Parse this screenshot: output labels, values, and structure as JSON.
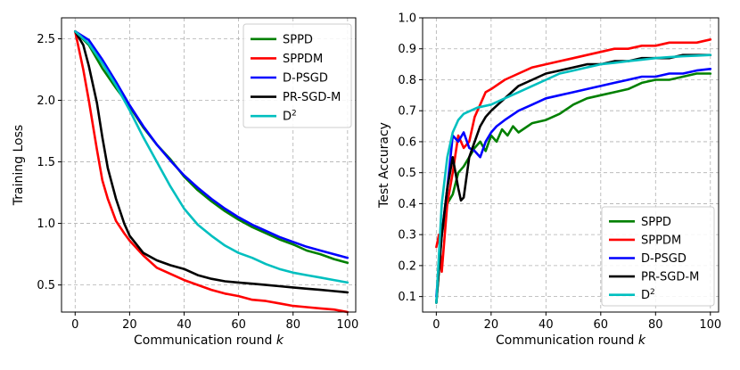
{
  "chart_data": [
    {
      "type": "line",
      "title": "",
      "xlabel": "Communication round",
      "xlabel_var": "k",
      "ylabel": "Training Loss",
      "xlim": [
        -5,
        103
      ],
      "ylim": [
        0.28,
        2.67
      ],
      "xticks": [
        0,
        20,
        40,
        60,
        80,
        100
      ],
      "xtick_labels": [
        "0",
        "20",
        "40",
        "60",
        "80",
        "100"
      ],
      "yticks": [
        0.5,
        1.0,
        1.5,
        2.0,
        2.5
      ],
      "ytick_labels": [
        "0.5",
        "1.0",
        "1.5",
        "2.0",
        "2.5"
      ],
      "grid": true,
      "legend": "top-right",
      "series": [
        {
          "name": "SPPD",
          "color": "#008000",
          "x": [
            0,
            5,
            10,
            15,
            20,
            25,
            30,
            35,
            40,
            45,
            50,
            55,
            60,
            65,
            70,
            75,
            80,
            85,
            90,
            95,
            100
          ],
          "y": [
            2.56,
            2.45,
            2.26,
            2.1,
            1.95,
            1.78,
            1.64,
            1.52,
            1.38,
            1.27,
            1.18,
            1.1,
            1.03,
            0.97,
            0.92,
            0.87,
            0.83,
            0.78,
            0.75,
            0.71,
            0.68
          ]
        },
        {
          "name": "SPPDM",
          "color": "#ff0000",
          "x": [
            0,
            3,
            5,
            8,
            10,
            12,
            15,
            18,
            20,
            25,
            30,
            35,
            40,
            45,
            50,
            55,
            60,
            65,
            70,
            75,
            80,
            85,
            90,
            95,
            100
          ],
          "y": [
            2.56,
            2.25,
            2.0,
            1.6,
            1.35,
            1.2,
            1.02,
            0.92,
            0.86,
            0.74,
            0.64,
            0.59,
            0.54,
            0.5,
            0.46,
            0.43,
            0.41,
            0.38,
            0.37,
            0.35,
            0.33,
            0.32,
            0.31,
            0.3,
            0.28
          ]
        },
        {
          "name": "D-PSGD",
          "color": "#0000ff",
          "x": [
            0,
            5,
            10,
            15,
            20,
            25,
            30,
            35,
            40,
            45,
            50,
            55,
            60,
            65,
            70,
            75,
            80,
            85,
            90,
            95,
            100
          ],
          "y": [
            2.56,
            2.49,
            2.33,
            2.15,
            1.96,
            1.79,
            1.64,
            1.51,
            1.39,
            1.29,
            1.2,
            1.12,
            1.05,
            0.99,
            0.94,
            0.89,
            0.85,
            0.81,
            0.78,
            0.75,
            0.72
          ]
        },
        {
          "name": "PR-SGD-M",
          "color": "#000000",
          "x": [
            0,
            3,
            5,
            8,
            10,
            12,
            15,
            18,
            20,
            25,
            30,
            35,
            40,
            45,
            50,
            55,
            60,
            65,
            70,
            75,
            80,
            85,
            90,
            95,
            100
          ],
          "y": [
            2.56,
            2.45,
            2.28,
            1.98,
            1.7,
            1.45,
            1.2,
            1.0,
            0.9,
            0.76,
            0.7,
            0.66,
            0.63,
            0.58,
            0.55,
            0.53,
            0.52,
            0.51,
            0.5,
            0.49,
            0.48,
            0.47,
            0.46,
            0.45,
            0.44
          ]
        },
        {
          "name": "D2",
          "color": "#00bfbf",
          "x": [
            0,
            5,
            10,
            15,
            20,
            25,
            30,
            35,
            40,
            45,
            50,
            55,
            60,
            65,
            70,
            75,
            80,
            85,
            90,
            95,
            100
          ],
          "y": [
            2.56,
            2.46,
            2.3,
            2.12,
            1.92,
            1.7,
            1.5,
            1.3,
            1.12,
            0.99,
            0.9,
            0.82,
            0.76,
            0.72,
            0.67,
            0.63,
            0.6,
            0.58,
            0.56,
            0.54,
            0.52
          ]
        }
      ]
    },
    {
      "type": "line",
      "title": "",
      "xlabel": "Communication round",
      "xlabel_var": "k",
      "ylabel": "Test Accuracy",
      "xlim": [
        -5,
        103
      ],
      "ylim": [
        0.05,
        1.0
      ],
      "xticks": [
        0,
        20,
        40,
        60,
        80,
        100
      ],
      "xtick_labels": [
        "0",
        "20",
        "40",
        "60",
        "80",
        "100"
      ],
      "yticks": [
        0.1,
        0.2,
        0.3,
        0.4,
        0.5,
        0.6,
        0.7,
        0.8,
        0.9,
        1.0
      ],
      "ytick_labels": [
        "0.1",
        "0.2",
        "0.3",
        "0.4",
        "0.5",
        "0.6",
        "0.7",
        "0.8",
        "0.9",
        "1.0"
      ],
      "grid": true,
      "legend": "bottom-right",
      "series": [
        {
          "name": "SPPD",
          "color": "#008000",
          "x": [
            0,
            2,
            4,
            6,
            8,
            10,
            12,
            14,
            16,
            18,
            20,
            22,
            24,
            26,
            28,
            30,
            35,
            40,
            45,
            50,
            55,
            60,
            65,
            70,
            75,
            80,
            85,
            90,
            95,
            100
          ],
          "y": [
            0.08,
            0.3,
            0.4,
            0.43,
            0.5,
            0.52,
            0.55,
            0.58,
            0.6,
            0.57,
            0.62,
            0.6,
            0.64,
            0.62,
            0.65,
            0.63,
            0.66,
            0.67,
            0.69,
            0.72,
            0.74,
            0.75,
            0.76,
            0.77,
            0.79,
            0.8,
            0.8,
            0.81,
            0.82,
            0.82
          ]
        },
        {
          "name": "SPPDM",
          "color": "#ff0000",
          "x": [
            0,
            1,
            2,
            4,
            6,
            8,
            10,
            12,
            14,
            16,
            18,
            20,
            25,
            30,
            35,
            40,
            45,
            50,
            55,
            60,
            65,
            70,
            75,
            80,
            85,
            90,
            95,
            100
          ],
          "y": [
            0.26,
            0.3,
            0.18,
            0.4,
            0.5,
            0.62,
            0.58,
            0.6,
            0.68,
            0.72,
            0.76,
            0.77,
            0.8,
            0.82,
            0.84,
            0.85,
            0.86,
            0.87,
            0.88,
            0.89,
            0.9,
            0.9,
            0.91,
            0.91,
            0.92,
            0.92,
            0.92,
            0.93
          ]
        },
        {
          "name": "D-PSGD",
          "color": "#0000ff",
          "x": [
            0,
            2,
            4,
            6,
            8,
            10,
            12,
            14,
            16,
            18,
            20,
            22,
            25,
            30,
            35,
            40,
            45,
            50,
            55,
            60,
            65,
            70,
            75,
            80,
            85,
            90,
            95,
            100
          ],
          "y": [
            0.1,
            0.3,
            0.45,
            0.62,
            0.6,
            0.63,
            0.58,
            0.57,
            0.55,
            0.6,
            0.63,
            0.65,
            0.67,
            0.7,
            0.72,
            0.74,
            0.75,
            0.76,
            0.77,
            0.78,
            0.79,
            0.8,
            0.81,
            0.81,
            0.82,
            0.82,
            0.83,
            0.835
          ]
        },
        {
          "name": "PR-SGD-M",
          "color": "#000000",
          "x": [
            0,
            2,
            4,
            6,
            8,
            9,
            10,
            12,
            14,
            16,
            18,
            20,
            25,
            30,
            35,
            40,
            45,
            50,
            55,
            60,
            65,
            70,
            75,
            80,
            85,
            90,
            95,
            100
          ],
          "y": [
            0.08,
            0.3,
            0.45,
            0.55,
            0.45,
            0.41,
            0.42,
            0.55,
            0.6,
            0.65,
            0.68,
            0.7,
            0.74,
            0.78,
            0.8,
            0.82,
            0.83,
            0.84,
            0.85,
            0.85,
            0.86,
            0.86,
            0.87,
            0.87,
            0.87,
            0.88,
            0.88,
            0.88
          ]
        },
        {
          "name": "D2",
          "color": "#00bfbf",
          "x": [
            0,
            2,
            4,
            6,
            8,
            10,
            15,
            20,
            25,
            30,
            35,
            40,
            45,
            50,
            55,
            60,
            65,
            70,
            75,
            80,
            85,
            90,
            95,
            100
          ],
          "y": [
            0.08,
            0.4,
            0.55,
            0.63,
            0.67,
            0.69,
            0.71,
            0.72,
            0.74,
            0.76,
            0.78,
            0.8,
            0.82,
            0.83,
            0.84,
            0.85,
            0.855,
            0.86,
            0.865,
            0.87,
            0.873,
            0.876,
            0.878,
            0.88
          ]
        }
      ]
    }
  ]
}
